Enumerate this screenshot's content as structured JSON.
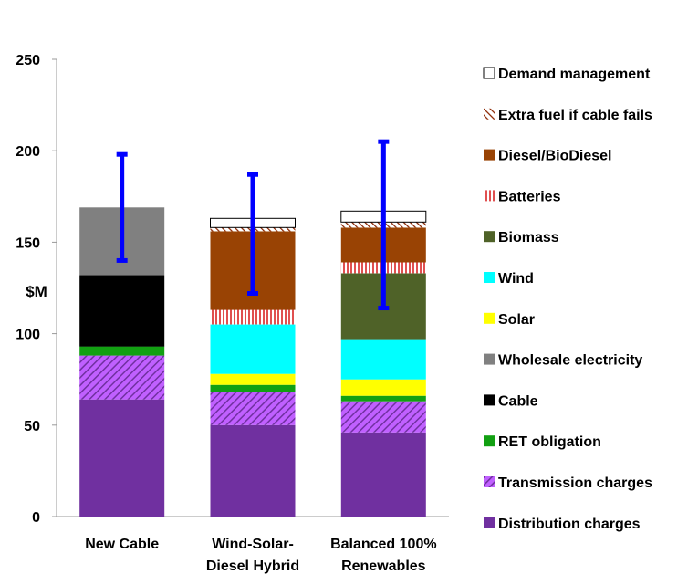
{
  "chart_data": {
    "type": "bar",
    "stacked": true,
    "ylabel": "$M",
    "ylim": [
      0,
      250
    ],
    "yticks": [
      0,
      50,
      100,
      150,
      200,
      250
    ],
    "grid": false,
    "legend_position": "right",
    "categories": [
      [
        "New Cable"
      ],
      [
        "Wind-Solar-",
        "Diesel Hybrid"
      ],
      [
        "Balanced 100%",
        "Renewables"
      ]
    ],
    "series": [
      {
        "name": "Distribution charges",
        "color": "#7030a0",
        "pattern": "solid",
        "values": [
          64,
          50,
          46
        ]
      },
      {
        "name": "Transmission charges",
        "color": "#c060ff",
        "pattern": "hatch-purple",
        "values": [
          24,
          18,
          17
        ]
      },
      {
        "name": "RET obligation",
        "color": "#12a012",
        "pattern": "solid",
        "values": [
          5,
          4,
          3
        ]
      },
      {
        "name": "Cable",
        "color": "#000000",
        "pattern": "solid",
        "values": [
          39,
          0,
          0
        ]
      },
      {
        "name": "Wholesale electricity",
        "color": "#808080",
        "pattern": "solid",
        "values": [
          37,
          0,
          0
        ]
      },
      {
        "name": "Solar",
        "color": "#ffff00",
        "pattern": "solid",
        "values": [
          0,
          6,
          9
        ]
      },
      {
        "name": "Wind",
        "color": "#00ffff",
        "pattern": "solid",
        "values": [
          0,
          27,
          22
        ]
      },
      {
        "name": "Biomass",
        "color": "#4f6228",
        "pattern": "solid",
        "values": [
          0,
          0,
          36
        ]
      },
      {
        "name": "Batteries",
        "color": "#ffffff",
        "pattern": "stripe-red",
        "values": [
          0,
          8,
          6
        ]
      },
      {
        "name": "Diesel/BioDiesel",
        "color": "#994304",
        "pattern": "solid",
        "values": [
          0,
          43,
          19
        ]
      },
      {
        "name": "Extra fuel if cable fails",
        "color": "#ffffff",
        "pattern": "hatch-brown",
        "values": [
          0,
          2,
          3
        ]
      },
      {
        "name": "Demand management",
        "color": "#ffffff",
        "pattern": "outline",
        "values": [
          0,
          5,
          6
        ]
      }
    ],
    "error_bars": [
      {
        "low": 140,
        "high": 198
      },
      {
        "low": 122,
        "high": 187
      },
      {
        "low": 114,
        "high": 205
      }
    ],
    "error_bar_color": "#0000ff",
    "legend_order": [
      "Demand management",
      "Extra fuel if cable fails",
      "Diesel/BioDiesel",
      "Batteries",
      "Biomass",
      "Wind",
      "Solar",
      "Wholesale electricity",
      "Cable",
      "RET obligation",
      "Transmission charges",
      "Distribution charges"
    ]
  }
}
